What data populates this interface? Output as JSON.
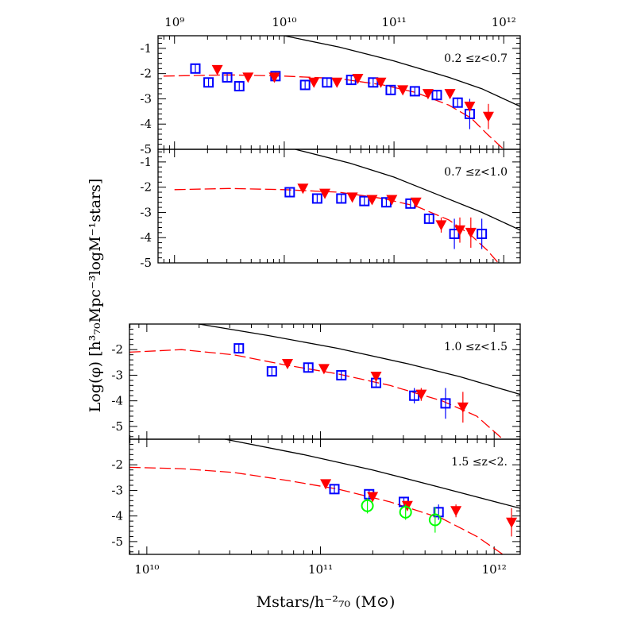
{
  "chart_data": [
    {
      "type": "scatter",
      "panel_label": "0.2 ≤z<0.7",
      "xlim_log10": [
        8.85,
        12.15
      ],
      "ylim": [
        -5,
        -0.5
      ],
      "yticks": [
        -1,
        -2,
        -3,
        -4,
        -5
      ],
      "top_axis_ticks": [
        9,
        10,
        11,
        12
      ],
      "top_axis_labels": [
        "10⁹",
        "10¹⁰",
        "10¹¹",
        "10¹²"
      ],
      "colors": {
        "squares": "#0000ff",
        "triangles": "#ff0000",
        "circles": "#00ff00",
        "black_curve": "#000000",
        "red_curve": "#ff0000"
      },
      "series": [
        {
          "marker": "open-square",
          "color": "#0000ff",
          "points": [
            [
              9.19,
              -1.8
            ],
            [
              9.31,
              -2.35
            ],
            [
              9.48,
              -2.15
            ],
            [
              9.59,
              -2.5
            ],
            [
              9.92,
              -2.1
            ],
            [
              10.19,
              -2.45
            ],
            [
              10.39,
              -2.35
            ],
            [
              10.61,
              -2.25
            ],
            [
              10.81,
              -2.35
            ],
            [
              10.97,
              -2.65
            ],
            [
              11.19,
              -2.7
            ],
            [
              11.39,
              -2.85
            ],
            [
              11.58,
              -3.15
            ],
            [
              11.69,
              -3.6
            ]
          ],
          "err": [
            0.15,
            0.15,
            0.15,
            0.15,
            0.15,
            0.15,
            0.15,
            0.15,
            0.15,
            0.15,
            0.15,
            0.15,
            0.2,
            0.6
          ]
        },
        {
          "marker": "filled-triangle",
          "color": "#ff0000",
          "points": [
            [
              9.39,
              -1.85
            ],
            [
              9.67,
              -2.15
            ],
            [
              9.91,
              -2.15
            ],
            [
              10.27,
              -2.35
            ],
            [
              10.48,
              -2.35
            ],
            [
              10.67,
              -2.2
            ],
            [
              10.88,
              -2.35
            ],
            [
              11.08,
              -2.65
            ],
            [
              11.31,
              -2.8
            ],
            [
              11.51,
              -2.8
            ],
            [
              11.69,
              -3.3
            ],
            [
              11.86,
              -3.7
            ]
          ],
          "err": [
            0.1,
            0.1,
            0.1,
            0.1,
            0.1,
            0.1,
            0.1,
            0.1,
            0.1,
            0.1,
            0.2,
            0.5
          ]
        }
      ],
      "curves": [
        {
          "style": "solid",
          "color": "#000000",
          "points": [
            [
              10,
              -0.5
            ],
            [
              10.5,
              -0.95
            ],
            [
              11.0,
              -1.5
            ],
            [
              11.5,
              -2.15
            ],
            [
              11.8,
              -2.6
            ],
            [
              12.15,
              -3.3
            ]
          ]
        },
        {
          "style": "dashed",
          "color": "#ff0000",
          "points": [
            [
              8.9,
              -2.1
            ],
            [
              9.5,
              -2.05
            ],
            [
              10.0,
              -2.1
            ],
            [
              10.5,
              -2.2
            ],
            [
              10.9,
              -2.45
            ],
            [
              11.2,
              -2.75
            ],
            [
              11.5,
              -3.25
            ],
            [
              11.7,
              -3.75
            ],
            [
              11.85,
              -4.4
            ],
            [
              12.0,
              -5
            ]
          ]
        }
      ]
    },
    {
      "type": "scatter",
      "panel_label": "0.7 ≤z<1.0",
      "xlim_log10": [
        8.85,
        12.15
      ],
      "ylim": [
        -5,
        -0.5
      ],
      "yticks": [
        -1,
        -2,
        -3,
        -4,
        -5
      ],
      "series": [
        {
          "marker": "open-square",
          "color": "#0000ff",
          "points": [
            [
              10.05,
              -2.2
            ],
            [
              10.3,
              -2.45
            ],
            [
              10.52,
              -2.45
            ],
            [
              10.73,
              -2.55
            ],
            [
              10.93,
              -2.6
            ],
            [
              11.15,
              -2.65
            ],
            [
              11.32,
              -3.25
            ],
            [
              11.55,
              -3.85
            ],
            [
              11.8,
              -3.85
            ]
          ],
          "err": [
            0.15,
            0.15,
            0.15,
            0.15,
            0.15,
            0.15,
            0.2,
            0.6,
            0.6
          ]
        },
        {
          "marker": "filled-triangle",
          "color": "#ff0000",
          "points": [
            [
              10.17,
              -2.05
            ],
            [
              10.37,
              -2.25
            ],
            [
              10.62,
              -2.4
            ],
            [
              10.8,
              -2.5
            ],
            [
              10.98,
              -2.5
            ],
            [
              11.2,
              -2.6
            ],
            [
              11.43,
              -3.5
            ],
            [
              11.6,
              -3.7
            ],
            [
              11.7,
              -3.8
            ]
          ],
          "err": [
            0.1,
            0.1,
            0.1,
            0.1,
            0.1,
            0.1,
            0.3,
            0.5,
            0.6
          ]
        }
      ],
      "curves": [
        {
          "style": "solid",
          "color": "#000000",
          "points": [
            [
              10.1,
              -0.5
            ],
            [
              10.6,
              -1.05
            ],
            [
              11.0,
              -1.6
            ],
            [
              11.4,
              -2.3
            ],
            [
              11.8,
              -3.0
            ],
            [
              12.15,
              -3.7
            ]
          ]
        },
        {
          "style": "dashed",
          "color": "#ff0000",
          "points": [
            [
              9.0,
              -2.1
            ],
            [
              9.5,
              -2.05
            ],
            [
              10.0,
              -2.1
            ],
            [
              10.5,
              -2.2
            ],
            [
              10.9,
              -2.45
            ],
            [
              11.2,
              -2.75
            ],
            [
              11.5,
              -3.3
            ],
            [
              11.7,
              -3.9
            ],
            [
              11.85,
              -4.5
            ],
            [
              11.95,
              -5
            ]
          ]
        }
      ]
    },
    {
      "type": "scatter",
      "panel_label": "1.0 ≤z<1.5",
      "xlim_log10": [
        9.9,
        11.35
      ],
      "ylim": [
        -5.5,
        -1.0
      ],
      "yticks": [
        -2,
        -3,
        -4,
        -5
      ],
      "series": [
        {
          "marker": "open-square",
          "color": "#0000ff",
          "points": [
            [
              10.53,
              -1.95
            ],
            [
              10.72,
              -2.85
            ],
            [
              10.93,
              -2.7
            ],
            [
              11.12,
              -3.0
            ],
            [
              11.32,
              -3.3
            ],
            [
              11.54,
              -3.8
            ],
            [
              11.72,
              -4.1
            ]
          ],
          "err": [
            0.15,
            0.15,
            0.15,
            0.15,
            0.15,
            0.3,
            0.6
          ]
        },
        {
          "marker": "filled-triangle",
          "color": "#ff0000",
          "points": [
            [
              10.81,
              -2.55
            ],
            [
              11.02,
              -2.75
            ],
            [
              11.32,
              -3.05
            ],
            [
              11.58,
              -3.75
            ],
            [
              11.82,
              -4.25
            ]
          ],
          "err": [
            0.1,
            0.1,
            0.1,
            0.25,
            0.6
          ]
        }
      ],
      "curves": [
        {
          "style": "solid",
          "color": "#000000",
          "points": [
            [
              10.3,
              -1.0
            ],
            [
              10.7,
              -1.45
            ],
            [
              11.1,
              -1.95
            ],
            [
              11.5,
              -2.55
            ],
            [
              11.8,
              -3.05
            ],
            [
              12.15,
              -3.75
            ]
          ]
        },
        {
          "style": "dashed",
          "color": "#ff0000",
          "points": [
            [
              9.9,
              -2.1
            ],
            [
              10.2,
              -2.0
            ],
            [
              10.5,
              -2.2
            ],
            [
              10.8,
              -2.6
            ],
            [
              11.1,
              -2.95
            ],
            [
              11.4,
              -3.4
            ],
            [
              11.7,
              -4.0
            ],
            [
              11.9,
              -4.6
            ],
            [
              12.05,
              -5.5
            ]
          ]
        }
      ]
    },
    {
      "type": "scatter",
      "panel_label": "1.5 ≤z<2.",
      "xlim_log10": [
        9.9,
        12.15
      ],
      "ylim": [
        -5.5,
        -1.0
      ],
      "yticks": [
        -2,
        -3,
        -4,
        -5
      ],
      "bottom_axis_ticks": [
        10,
        11,
        12
      ],
      "bottom_axis_labels": [
        "10¹⁰",
        "10¹¹",
        "10¹²"
      ],
      "series": [
        {
          "marker": "open-square",
          "color": "#0000ff",
          "points": [
            [
              11.08,
              -2.95
            ],
            [
              11.28,
              -3.15
            ],
            [
              11.48,
              -3.45
            ],
            [
              11.68,
              -3.85
            ]
          ],
          "err": [
            0.15,
            0.15,
            0.2,
            0.3
          ]
        },
        {
          "marker": "filled-triangle",
          "color": "#ff0000",
          "points": [
            [
              11.03,
              -2.75
            ],
            [
              11.3,
              -3.25
            ],
            [
              11.5,
              -3.6
            ],
            [
              11.78,
              -3.8
            ],
            [
              12.1,
              -4.25
            ]
          ],
          "err": [
            0.1,
            0.15,
            0.2,
            0.25,
            0.55
          ]
        },
        {
          "marker": "open-circle",
          "color": "#00ff00",
          "points": [
            [
              11.27,
              -3.6
            ],
            [
              11.49,
              -3.85
            ],
            [
              11.66,
              -4.15
            ]
          ],
          "err": [
            0.3,
            0.3,
            0.5
          ]
        }
      ],
      "curves": [
        {
          "style": "solid",
          "color": "#000000",
          "points": [
            [
              10.45,
              -1.0
            ],
            [
              10.9,
              -1.6
            ],
            [
              11.3,
              -2.2
            ],
            [
              11.7,
              -2.9
            ],
            [
              12.15,
              -3.7
            ]
          ]
        },
        {
          "style": "dashed",
          "color": "#ff0000",
          "points": [
            [
              9.9,
              -2.1
            ],
            [
              10.2,
              -2.15
            ],
            [
              10.5,
              -2.3
            ],
            [
              10.8,
              -2.6
            ],
            [
              11.1,
              -2.95
            ],
            [
              11.4,
              -3.45
            ],
            [
              11.7,
              -4.1
            ],
            [
              11.9,
              -4.8
            ],
            [
              12.05,
              -5.5
            ]
          ]
        }
      ]
    }
  ],
  "axes": {
    "ylabel": "Log(φ) [h³₇₀Mpc⁻³logM⁻¹stars]",
    "xlabel": "Mstars/h⁻²₇₀ (M⊙)"
  }
}
